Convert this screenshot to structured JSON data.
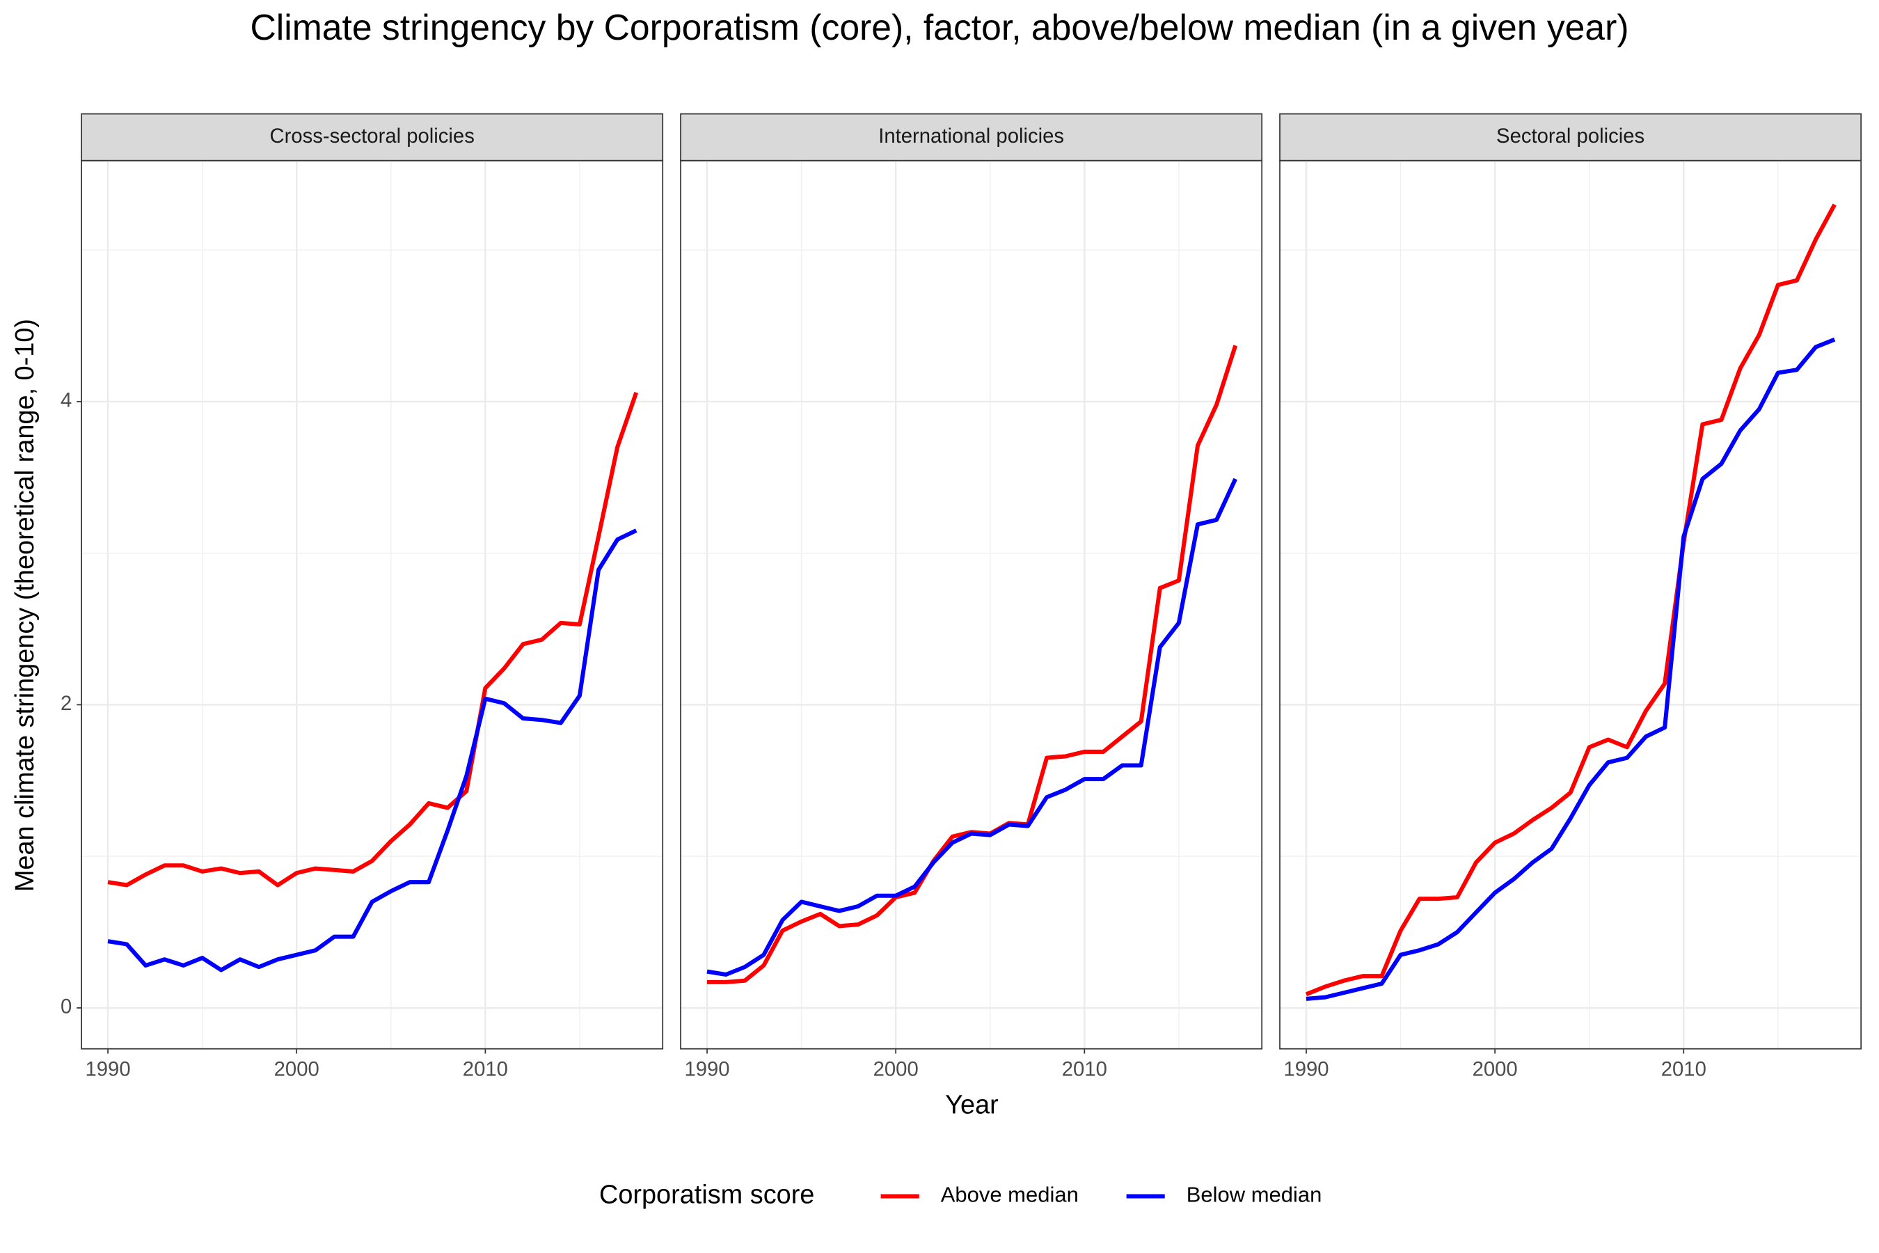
{
  "title": "Climate stringency by Corporatism (core), factor, above/below median (in a given year)",
  "x_label": "Year",
  "y_label": "Mean climate stringency (theoretical range, 0-10)",
  "legend_title": "Corporatism score",
  "chart_data": [
    {
      "type": "line",
      "title": "Cross-sectoral policies",
      "x": [
        1990,
        1991,
        1992,
        1993,
        1994,
        1995,
        1996,
        1997,
        1998,
        1999,
        2000,
        2001,
        2002,
        2003,
        2004,
        2005,
        2006,
        2007,
        2008,
        2009,
        2010,
        2011,
        2012,
        2013,
        2014,
        2015,
        2016,
        2017,
        2018
      ],
      "series": [
        {
          "name": "Above median",
          "color": "#ff0000",
          "values": [
            0.83,
            0.81,
            0.88,
            0.94,
            0.94,
            0.9,
            0.92,
            0.89,
            0.9,
            0.81,
            0.89,
            0.92,
            0.91,
            0.9,
            0.97,
            1.1,
            1.21,
            1.35,
            1.32,
            1.43,
            2.11,
            2.24,
            2.4,
            2.43,
            2.54,
            2.53,
            3.11,
            3.7,
            4.06
          ]
        },
        {
          "name": "Below median",
          "color": "#0000ff",
          "values": [
            0.44,
            0.42,
            0.28,
            0.32,
            0.28,
            0.33,
            0.25,
            0.32,
            0.27,
            0.32,
            0.35,
            0.38,
            0.47,
            0.47,
            0.7,
            0.77,
            0.83,
            0.83,
            1.17,
            1.53,
            2.04,
            2.01,
            1.91,
            1.9,
            1.88,
            2.06,
            2.89,
            3.09,
            3.15
          ]
        }
      ],
      "xlim": [
        1988.6,
        2019.4
      ],
      "ylim": [
        -0.27,
        5.59
      ],
      "xticks": [
        1990,
        2000,
        2010
      ],
      "yticks": [
        0,
        2,
        4
      ],
      "xminor": [
        1995,
        2005,
        2015
      ],
      "yminor": [
        1,
        3,
        5
      ],
      "grid": true
    },
    {
      "type": "line",
      "title": "International policies",
      "x": [
        1990,
        1991,
        1992,
        1993,
        1994,
        1995,
        1996,
        1997,
        1998,
        1999,
        2000,
        2001,
        2002,
        2003,
        2004,
        2005,
        2006,
        2007,
        2008,
        2009,
        2010,
        2011,
        2012,
        2013,
        2014,
        2015,
        2016,
        2017,
        2018
      ],
      "series": [
        {
          "name": "Above median",
          "color": "#ff0000",
          "values": [
            0.17,
            0.17,
            0.18,
            0.28,
            0.51,
            0.57,
            0.62,
            0.54,
            0.55,
            0.61,
            0.73,
            0.76,
            0.97,
            1.13,
            1.16,
            1.15,
            1.22,
            1.21,
            1.65,
            1.66,
            1.69,
            1.69,
            1.79,
            1.89,
            2.77,
            2.82,
            3.71,
            3.98,
            4.37
          ]
        },
        {
          "name": "Below median",
          "color": "#0000ff",
          "values": [
            0.24,
            0.22,
            0.27,
            0.35,
            0.58,
            0.7,
            0.67,
            0.64,
            0.67,
            0.74,
            0.74,
            0.8,
            0.96,
            1.09,
            1.15,
            1.14,
            1.21,
            1.2,
            1.39,
            1.44,
            1.51,
            1.51,
            1.6,
            1.6,
            2.38,
            2.54,
            3.19,
            3.22,
            3.49
          ]
        }
      ],
      "xlim": [
        1988.6,
        2019.4
      ],
      "ylim": [
        -0.27,
        5.59
      ],
      "xticks": [
        1990,
        2000,
        2010
      ],
      "yticks": [
        0,
        2,
        4
      ],
      "xminor": [
        1995,
        2005,
        2015
      ],
      "yminor": [
        1,
        3,
        5
      ],
      "grid": true
    },
    {
      "type": "line",
      "title": "Sectoral policies",
      "x": [
        1990,
        1991,
        1992,
        1993,
        1994,
        1995,
        1996,
        1997,
        1998,
        1999,
        2000,
        2001,
        2002,
        2003,
        2004,
        2005,
        2006,
        2007,
        2008,
        2009,
        2010,
        2011,
        2012,
        2013,
        2014,
        2015,
        2016,
        2017,
        2018
      ],
      "series": [
        {
          "name": "Above median",
          "color": "#ff0000",
          "values": [
            0.09,
            0.14,
            0.18,
            0.21,
            0.21,
            0.51,
            0.72,
            0.72,
            0.73,
            0.96,
            1.09,
            1.15,
            1.24,
            1.32,
            1.42,
            1.72,
            1.77,
            1.72,
            1.96,
            2.14,
            3.07,
            3.85,
            3.88,
            4.22,
            4.44,
            4.77,
            4.8,
            5.07,
            5.3
          ]
        },
        {
          "name": "Below median",
          "color": "#0000ff",
          "values": [
            0.06,
            0.07,
            0.1,
            0.13,
            0.16,
            0.35,
            0.38,
            0.42,
            0.5,
            0.63,
            0.76,
            0.85,
            0.96,
            1.05,
            1.25,
            1.47,
            1.62,
            1.65,
            1.79,
            1.85,
            3.11,
            3.49,
            3.59,
            3.81,
            3.95,
            4.19,
            4.21,
            4.36,
            4.41
          ]
        }
      ],
      "xlim": [
        1988.6,
        2019.4
      ],
      "ylim": [
        -0.27,
        5.59
      ],
      "xticks": [
        1990,
        2000,
        2010
      ],
      "yticks": [
        0,
        2,
        4
      ],
      "xminor": [
        1995,
        2005,
        2015
      ],
      "yminor": [
        1,
        3,
        5
      ],
      "grid": true
    }
  ]
}
